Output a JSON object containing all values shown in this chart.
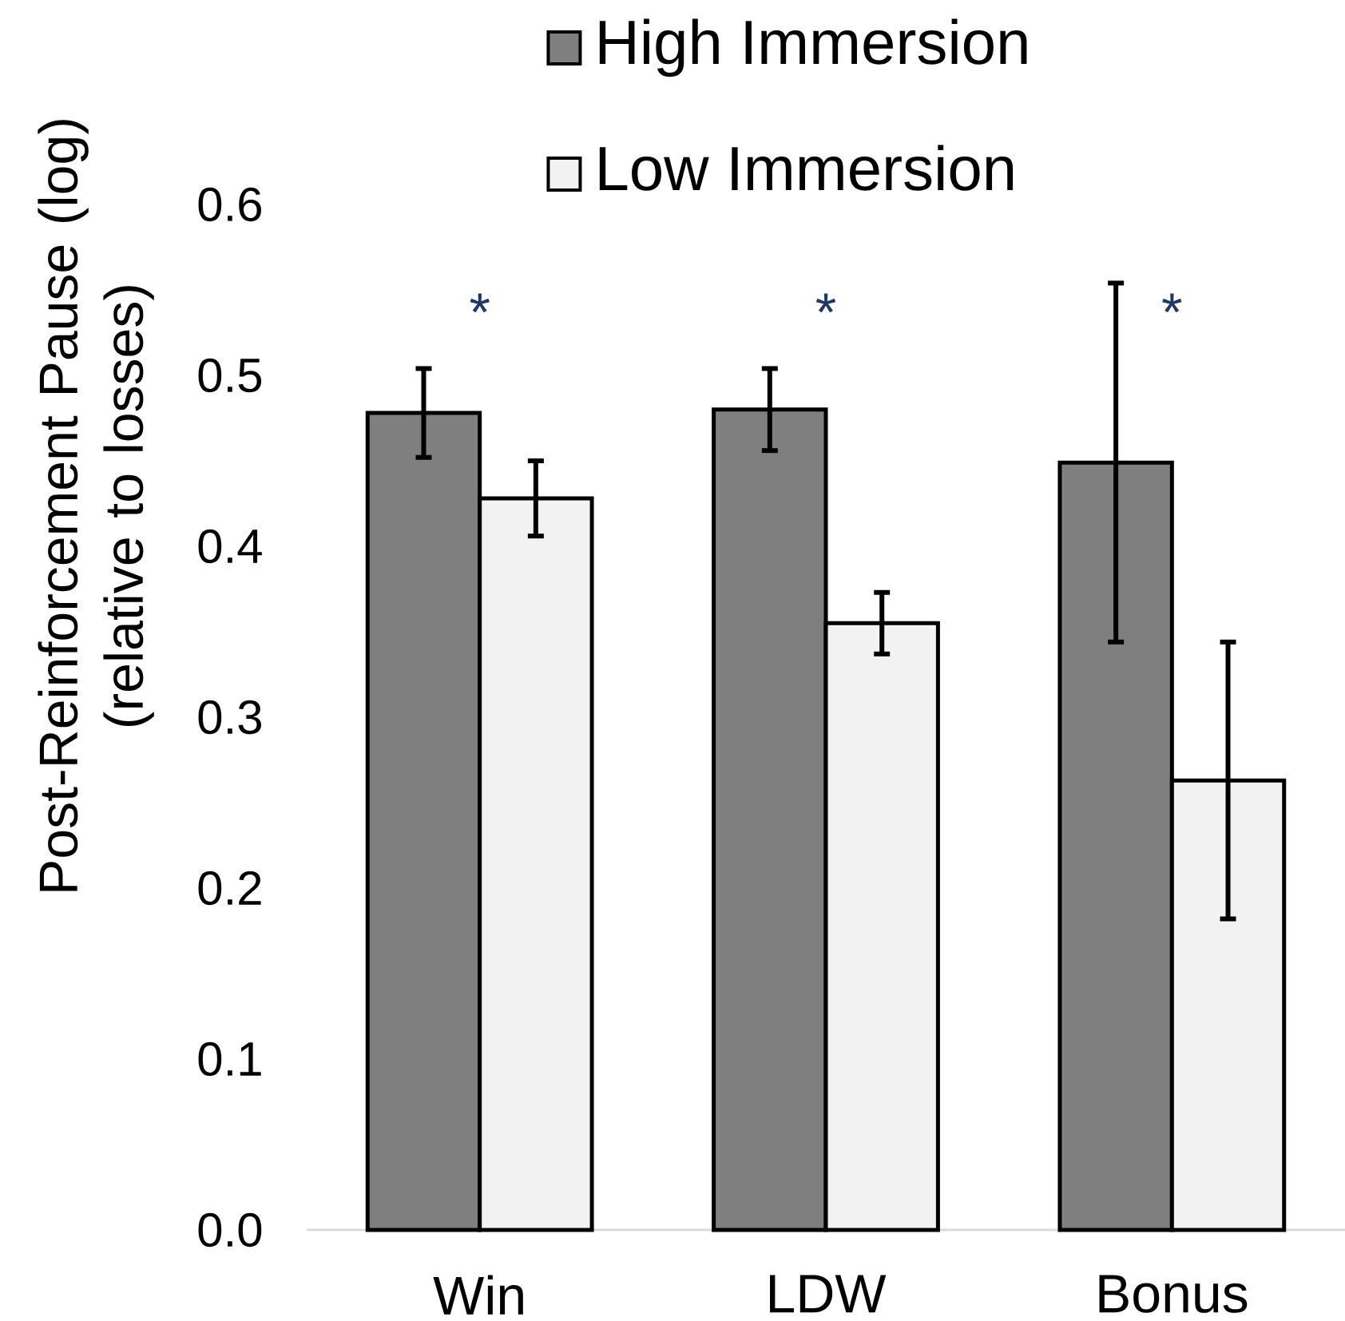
{
  "chart_data": {
    "type": "bar",
    "categories": [
      "Win",
      "LDW",
      "Bonus"
    ],
    "series": [
      {
        "name": "High Immersion",
        "color": "#7f7f7f",
        "values": [
          0.478,
          0.48,
          0.449
        ],
        "errors": [
          0.026,
          0.024,
          0.105
        ]
      },
      {
        "name": "Low Immersion",
        "color": "#f2f2f2",
        "values": [
          0.428,
          0.355,
          0.263
        ],
        "errors": [
          0.022,
          0.018,
          0.081
        ]
      }
    ],
    "ylabel": "Post-Reinforcement Pause (log) (relative to losses)",
    "ylim": [
      0,
      0.6
    ],
    "yticks": [
      {
        "value": 0,
        "label": "0.0"
      },
      0.1,
      0.2,
      0.3,
      0.4,
      0.5,
      0.6
    ],
    "legend": "top",
    "annotations": [
      "*",
      "*",
      "*"
    ]
  }
}
